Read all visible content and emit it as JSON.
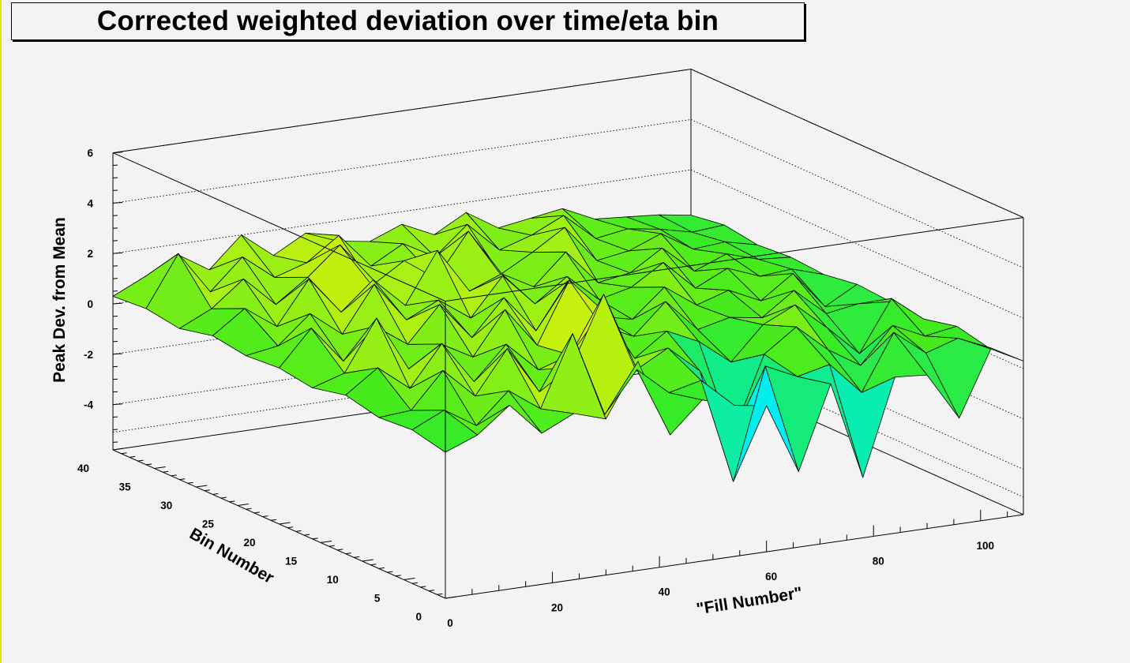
{
  "chart_data": {
    "type": "surface3d",
    "title": "Corrected weighted deviation over time/eta bin",
    "xlabel": "\"Fill Number\"",
    "ylabel": "Bin Number",
    "zlabel": "Peak Dev. from Mean",
    "xlim": [
      0,
      108
    ],
    "ylim": [
      0,
      40
    ],
    "zlim": [
      -5.8,
      6
    ],
    "x_ticks": [
      {
        "value": 0,
        "label": "0"
      },
      {
        "value": 20,
        "label": "20"
      },
      {
        "value": 40,
        "label": "40"
      },
      {
        "value": 60,
        "label": "60"
      },
      {
        "value": 80,
        "label": "80"
      },
      {
        "value": 100,
        "label": "100"
      }
    ],
    "y_ticks": [
      {
        "value": 0,
        "label": "0"
      },
      {
        "value": 5,
        "label": "5"
      },
      {
        "value": 10,
        "label": "10"
      },
      {
        "value": 15,
        "label": "15"
      },
      {
        "value": 20,
        "label": "20"
      },
      {
        "value": 25,
        "label": "25"
      },
      {
        "value": 30,
        "label": "30"
      },
      {
        "value": 35,
        "label": "35"
      },
      {
        "value": 40,
        "label": "40"
      }
    ],
    "z_ticks": [
      {
        "value": -4,
        "label": "-4"
      },
      {
        "value": -2,
        "label": "-2"
      },
      {
        "value": 0,
        "label": "0"
      },
      {
        "value": 2,
        "label": "2"
      },
      {
        "value": 4,
        "label": "4"
      },
      {
        "value": 6,
        "label": "6"
      }
    ],
    "grid": true,
    "colormap": "rainbow",
    "surface_x": [
      0,
      6,
      12,
      18,
      24,
      30,
      36,
      42,
      48,
      54,
      60,
      66,
      72,
      78,
      84,
      90,
      96,
      102,
      108
    ],
    "surface_y": [
      0,
      4,
      8,
      12,
      16,
      20,
      24,
      28,
      32,
      36,
      40
    ],
    "surface_z": [
      [
        0.0,
        0.5,
        1.5,
        0.2,
        0.8,
        0.4,
        2.5,
        -0.6,
        0.6,
        0.2,
        0.0,
        -2.8,
        0.5,
        -3.4,
        0.4,
        0.3,
        -1.6,
        1.0,
        0.3
      ],
      [
        0.3,
        0.9,
        0.1,
        1.3,
        0.4,
        3.2,
        -0.2,
        1.4,
        0.3,
        0.6,
        -3.6,
        0.8,
        0.2,
        0.5,
        -0.8,
        1.4,
        0.4,
        0.8,
        0.2
      ],
      [
        0.2,
        0.3,
        1.7,
        0.5,
        2.2,
        0.3,
        1.1,
        3.8,
        0.6,
        1.3,
        0.2,
        -2.6,
        0.5,
        1.4,
        0.3,
        -0.5,
        0.9,
        0.3,
        0.5
      ],
      [
        0.5,
        1.4,
        0.4,
        2.0,
        0.3,
        1.6,
        0.4,
        0.8,
        2.4,
        0.3,
        1.2,
        0.6,
        -0.4,
        0.9,
        1.5,
        0.4,
        -0.8,
        1.2,
        0.2
      ],
      [
        0.2,
        0.6,
        2.6,
        0.4,
        1.2,
        0.5,
        2.2,
        0.6,
        3.0,
        1.0,
        0.4,
        1.6,
        0.3,
        0.6,
        0.4,
        1.3,
        0.2,
        0.4,
        0.3
      ],
      [
        0.4,
        1.8,
        0.3,
        1.5,
        0.6,
        2.0,
        0.5,
        1.9,
        0.4,
        2.2,
        0.6,
        0.3,
        1.4,
        0.5,
        0.9,
        0.3,
        1.2,
        -0.3,
        0.4
      ],
      [
        0.3,
        0.5,
        1.6,
        0.6,
        2.4,
        0.8,
        1.4,
        0.5,
        2.0,
        0.7,
        1.6,
        0.5,
        0.8,
        1.6,
        0.4,
        1.0,
        0.5,
        0.6,
        0.2
      ],
      [
        0.5,
        1.4,
        0.5,
        2.2,
        0.7,
        1.8,
        0.6,
        2.6,
        0.8,
        1.3,
        0.6,
        1.8,
        0.4,
        0.6,
        1.4,
        0.3,
        0.8,
        0.4,
        0.3
      ],
      [
        0.2,
        0.8,
        1.8,
        0.6,
        1.5,
        2.6,
        0.8,
        1.6,
        0.7,
        2.4,
        0.5,
        1.2,
        2.0,
        0.5,
        0.7,
        1.2,
        0.4,
        0.5,
        0.2
      ],
      [
        0.4,
        2.4,
        0.7,
        1.9,
        0.9,
        1.3,
        2.2,
        0.8,
        1.5,
        0.8,
        1.9,
        0.7,
        1.1,
        1.7,
        0.6,
        0.8,
        0.6,
        0.3,
        0.4
      ],
      [
        0.3,
        0.9,
        1.6,
        0.8,
        2.0,
        1.0,
        1.7,
        1.2,
        1.0,
        1.5,
        0.9,
        1.6,
        0.8,
        1.0,
        1.2,
        0.6,
        0.5,
        0.4,
        0.2
      ]
    ]
  }
}
